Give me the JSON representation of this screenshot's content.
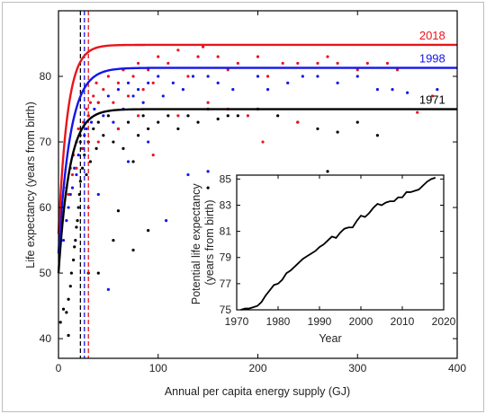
{
  "chart_data": [
    {
      "type": "scatter",
      "title": "",
      "xlabel": "Annual per capita energy supply (GJ)",
      "ylabel": "Life expectancy (years from birth)",
      "xlim": [
        0,
        400
      ],
      "ylim": [
        37,
        90
      ],
      "x_ticks": [
        0,
        100,
        200,
        300,
        400
      ],
      "y_ticks": [
        40,
        50,
        60,
        70,
        80
      ],
      "grid": false,
      "series": [
        {
          "name": "2018",
          "color": "#e8151b",
          "label": "2018",
          "curve_asymptote": 84.8,
          "curve_base": 56,
          "curve_k": 0.11,
          "threshold_x": 30,
          "points": [
            [
              5,
              60
            ],
            [
              8,
              63
            ],
            [
              10,
              62
            ],
            [
              12,
              66
            ],
            [
              14,
              65
            ],
            [
              15,
              68
            ],
            [
              18,
              70
            ],
            [
              20,
              72
            ],
            [
              22,
              71
            ],
            [
              25,
              73
            ],
            [
              28,
              75
            ],
            [
              30,
              74
            ],
            [
              32,
              76
            ],
            [
              35,
              77
            ],
            [
              38,
              79
            ],
            [
              40,
              76
            ],
            [
              45,
              78
            ],
            [
              50,
              80
            ],
            [
              55,
              76
            ],
            [
              60,
              79
            ],
            [
              65,
              81
            ],
            [
              70,
              77
            ],
            [
              75,
              80
            ],
            [
              80,
              82
            ],
            [
              85,
              78
            ],
            [
              90,
              81
            ],
            [
              95,
              79
            ],
            [
              100,
              83
            ],
            [
              110,
              82
            ],
            [
              120,
              84
            ],
            [
              130,
              80
            ],
            [
              140,
              83
            ],
            [
              145,
              84.5
            ],
            [
              160,
              83
            ],
            [
              170,
              81
            ],
            [
              180,
              82
            ],
            [
              200,
              83
            ],
            [
              210,
              80
            ],
            [
              225,
              82
            ],
            [
              240,
              82
            ],
            [
              260,
              82
            ],
            [
              270,
              83
            ],
            [
              280,
              82
            ],
            [
              300,
              81
            ],
            [
              310,
              82
            ],
            [
              330,
              82
            ],
            [
              340,
              81
            ],
            [
              360,
              74.5
            ],
            [
              375,
              77
            ],
            [
              190,
              74
            ],
            [
              205,
              70
            ],
            [
              240,
              73
            ],
            [
              120,
              74
            ],
            [
              60,
              72
            ],
            [
              95,
              68
            ],
            [
              40,
              70
            ],
            [
              25,
              69
            ],
            [
              18,
              66
            ],
            [
              30,
              60
            ],
            [
              150,
              76
            ],
            [
              170,
              75
            ],
            [
              80,
              74
            ]
          ]
        },
        {
          "name": "1998",
          "color": "#1515e8",
          "label": "1998",
          "curve_asymptote": 81.3,
          "curve_base": 53,
          "curve_k": 0.085,
          "threshold_x": 26,
          "points": [
            [
              5,
              55
            ],
            [
              8,
              58
            ],
            [
              10,
              60
            ],
            [
              12,
              62
            ],
            [
              14,
              63
            ],
            [
              16,
              66
            ],
            [
              18,
              65
            ],
            [
              20,
              68
            ],
            [
              22,
              70
            ],
            [
              24,
              69
            ],
            [
              26,
              71
            ],
            [
              28,
              72
            ],
            [
              30,
              74
            ],
            [
              33,
              73
            ],
            [
              36,
              75
            ],
            [
              40,
              76
            ],
            [
              45,
              74
            ],
            [
              50,
              77
            ],
            [
              55,
              73
            ],
            [
              60,
              78
            ],
            [
              65,
              75
            ],
            [
              70,
              79
            ],
            [
              75,
              77
            ],
            [
              80,
              78
            ],
            [
              85,
              76
            ],
            [
              90,
              79
            ],
            [
              100,
              80
            ],
            [
              105,
              77
            ],
            [
              115,
              79
            ],
            [
              125,
              78
            ],
            [
              135,
              80
            ],
            [
              150,
              80
            ],
            [
              160,
              79
            ],
            [
              175,
              78
            ],
            [
              200,
              80
            ],
            [
              210,
              78
            ],
            [
              230,
              79
            ],
            [
              245,
              80
            ],
            [
              260,
              80
            ],
            [
              280,
              79
            ],
            [
              300,
              80
            ],
            [
              320,
              78
            ],
            [
              335,
              78
            ],
            [
              350,
              77.5
            ],
            [
              380,
              78
            ],
            [
              50,
              47.5
            ],
            [
              108,
              58
            ],
            [
              130,
              65
            ],
            [
              150,
              65.5
            ],
            [
              70,
              67
            ],
            [
              90,
              70
            ],
            [
              40,
              62
            ]
          ]
        },
        {
          "name": "1971",
          "color": "#000000",
          "label": "1971",
          "curve_asymptote": 75,
          "curve_base": 50,
          "curve_k": 0.09,
          "threshold_x": 22,
          "points": [
            [
              2,
              42.5
            ],
            [
              5,
              44.5
            ],
            [
              8,
              44
            ],
            [
              10,
              46
            ],
            [
              12,
              48
            ],
            [
              13,
              50
            ],
            [
              15,
              52
            ],
            [
              16,
              54
            ],
            [
              17,
              55
            ],
            [
              18,
              57
            ],
            [
              19,
              58
            ],
            [
              20,
              60
            ],
            [
              21,
              62
            ],
            [
              22,
              64
            ],
            [
              24,
              66
            ],
            [
              26,
              68
            ],
            [
              28,
              65
            ],
            [
              30,
              70
            ],
            [
              32,
              67
            ],
            [
              35,
              72
            ],
            [
              38,
              69
            ],
            [
              40,
              73
            ],
            [
              45,
              71
            ],
            [
              50,
              74
            ],
            [
              55,
              70
            ],
            [
              60,
              72
            ],
            [
              65,
              69
            ],
            [
              70,
              73
            ],
            [
              75,
              67
            ],
            [
              80,
              71
            ],
            [
              85,
              74
            ],
            [
              90,
              72
            ],
            [
              100,
              73
            ],
            [
              110,
              74
            ],
            [
              120,
              72
            ],
            [
              130,
              74
            ],
            [
              140,
              73
            ],
            [
              150,
              75
            ],
            [
              160,
              73.5
            ],
            [
              170,
              74
            ],
            [
              180,
              74
            ],
            [
              200,
              75
            ],
            [
              220,
              74
            ],
            [
              240,
              73
            ],
            [
              260,
              72
            ],
            [
              280,
              71.5
            ],
            [
              300,
              73
            ],
            [
              320,
              71
            ],
            [
              60,
              59.5
            ],
            [
              90,
              56.5
            ],
            [
              75,
              53.5
            ],
            [
              40,
              50
            ],
            [
              55,
              55
            ],
            [
              30,
              50
            ],
            [
              270,
              65.5
            ],
            [
              150,
              63
            ],
            [
              10,
              40.5
            ]
          ]
        }
      ],
      "annotations": [
        "2018",
        "1998",
        "1971"
      ]
    },
    {
      "type": "line",
      "title": "",
      "xlabel": "Year",
      "ylabel": "Potential life expectancy (years from birth)",
      "ylabel_lines": [
        "Potential life expectancy",
        "(years from birth)"
      ],
      "xlim": [
        1970,
        2020
      ],
      "ylim": [
        75,
        85.3
      ],
      "x_ticks": [
        1970,
        1980,
        1990,
        2000,
        2010,
        2020
      ],
      "y_ticks": [
        75,
        77,
        79,
        81,
        83,
        85
      ],
      "grid": false,
      "x": [
        1971,
        1972,
        1973,
        1974,
        1975,
        1976,
        1977,
        1978,
        1979,
        1980,
        1981,
        1982,
        1983,
        1984,
        1985,
        1986,
        1987,
        1988,
        1989,
        1990,
        1991,
        1992,
        1993,
        1994,
        1995,
        1996,
        1997,
        1998,
        1999,
        2000,
        2001,
        2002,
        2003,
        2004,
        2005,
        2006,
        2007,
        2008,
        2009,
        2010,
        2011,
        2012,
        2013,
        2014,
        2015,
        2016,
        2017,
        2018
      ],
      "values": [
        75.0,
        75.1,
        75.1,
        75.2,
        75.3,
        75.6,
        76.1,
        76.5,
        76.9,
        77.0,
        77.3,
        77.8,
        78.0,
        78.3,
        78.6,
        78.9,
        79.1,
        79.3,
        79.5,
        79.8,
        80.0,
        80.3,
        80.6,
        80.5,
        80.9,
        81.2,
        81.3,
        81.3,
        81.8,
        82.2,
        82.1,
        82.4,
        82.8,
        83.1,
        83.0,
        83.2,
        83.3,
        83.3,
        83.6,
        83.6,
        84.0,
        84.0,
        84.1,
        84.2,
        84.5,
        84.8,
        85.0,
        85.1
      ],
      "series_color": "#000000"
    }
  ]
}
